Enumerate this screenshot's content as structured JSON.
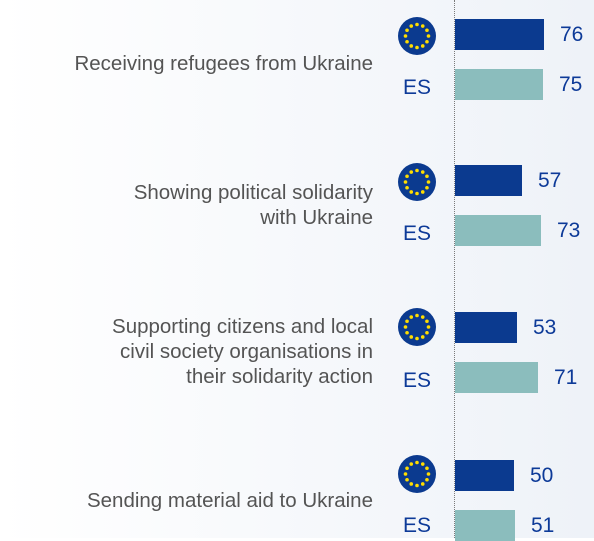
{
  "chart_data": {
    "type": "bar",
    "orientation": "horizontal",
    "categories": [
      "Receiving refugees from Ukraine",
      "Showing political solidarity\nwith Ukraine",
      "Supporting citizens and local\ncivil society organisations in\ntheir solidarity action",
      "Sending material aid to Ukraine"
    ],
    "series": [
      {
        "name": "EU",
        "color": "#0b3a8f",
        "values": [
          76,
          57,
          53,
          50
        ],
        "row_label_icon": "eu-flag-icon"
      },
      {
        "name": "ES",
        "color": "#8bbdbd",
        "values": [
          75,
          73,
          71,
          51
        ],
        "row_label": "ES"
      }
    ],
    "xlim": [
      0,
      100
    ],
    "grid": false,
    "legend": "none"
  }
}
